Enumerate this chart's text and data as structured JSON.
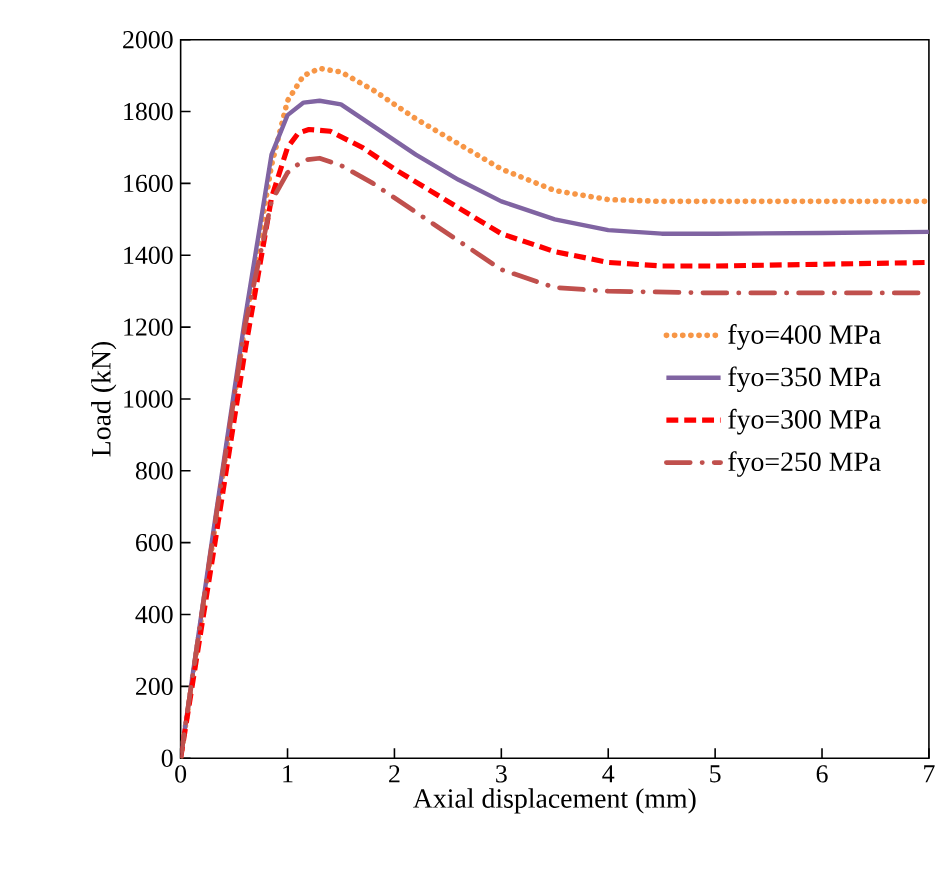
{
  "chart_data": {
    "type": "line",
    "xlabel": "Axial displacement (mm)",
    "ylabel": "Load (kN)",
    "xlim": [
      0,
      7
    ],
    "ylim": [
      0,
      2000
    ],
    "xticks": [
      0,
      1,
      2,
      3,
      4,
      5,
      6,
      7
    ],
    "yticks": [
      0,
      200,
      400,
      600,
      800,
      1000,
      1200,
      1400,
      1600,
      1800,
      2000
    ],
    "grid": false,
    "legend": "right",
    "series": [
      {
        "name": "fyo=400 MPa",
        "color": "#f79646",
        "line_style": "dotted",
        "x": [
          0,
          0.3,
          0.6,
          0.85,
          1.0,
          1.15,
          1.3,
          1.5,
          1.8,
          2.2,
          2.6,
          3.0,
          3.5,
          4.0,
          4.5,
          5.0,
          6.0,
          7.0
        ],
        "values": [
          0,
          600,
          1200,
          1650,
          1830,
          1900,
          1920,
          1910,
          1860,
          1780,
          1710,
          1640,
          1580,
          1555,
          1550,
          1550,
          1550,
          1550
        ]
      },
      {
        "name": "fyo=350 MPa",
        "color": "#8064a2",
        "line_style": "solid",
        "x": [
          0,
          0.3,
          0.6,
          0.85,
          1.0,
          1.15,
          1.3,
          1.5,
          1.8,
          2.2,
          2.6,
          3.0,
          3.5,
          4.0,
          4.5,
          5.0,
          6.0,
          7.0
        ],
        "values": [
          0,
          620,
          1220,
          1680,
          1790,
          1825,
          1830,
          1820,
          1760,
          1680,
          1610,
          1550,
          1500,
          1470,
          1460,
          1460,
          1462,
          1465
        ]
      },
      {
        "name": "fyo=300 MPa",
        "color": "#ff0000",
        "line_style": "dashed",
        "x": [
          0,
          0.3,
          0.6,
          0.85,
          1.0,
          1.1,
          1.2,
          1.4,
          1.7,
          2.0,
          2.5,
          3.0,
          3.5,
          4.0,
          4.5,
          5.0,
          6.0,
          7.0
        ],
        "values": [
          0,
          560,
          1130,
          1560,
          1700,
          1740,
          1750,
          1745,
          1700,
          1640,
          1550,
          1460,
          1410,
          1380,
          1370,
          1370,
          1375,
          1380
        ]
      },
      {
        "name": "fyo=250 MPa",
        "color": "#c0504d",
        "line_style": "dashdot",
        "x": [
          0,
          0.3,
          0.6,
          0.85,
          1.0,
          1.15,
          1.3,
          1.5,
          1.8,
          2.2,
          2.6,
          3.0,
          3.5,
          4.0,
          5.0,
          6.0,
          7.0
        ],
        "values": [
          0,
          610,
          1200,
          1550,
          1630,
          1665,
          1670,
          1650,
          1600,
          1520,
          1440,
          1360,
          1310,
          1300,
          1295,
          1295,
          1295
        ]
      }
    ]
  }
}
